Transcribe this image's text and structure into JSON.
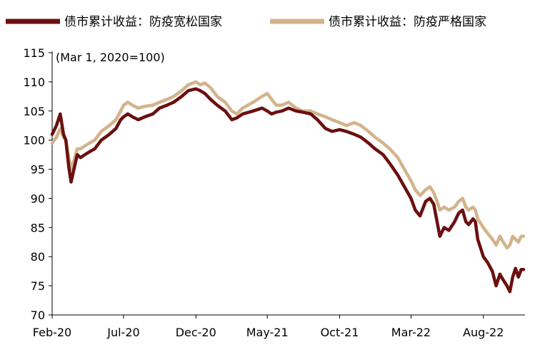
{
  "chart_data": {
    "type": "line",
    "note": "(Mar 1, 2020=100)",
    "ylim": [
      70,
      115
    ],
    "y_ticks": [
      70,
      75,
      80,
      85,
      90,
      95,
      100,
      105,
      110,
      115
    ],
    "x_ticks": [
      {
        "date": "2020-02-01",
        "label": "Feb-20"
      },
      {
        "date": "2020-07-01",
        "label": "Jul-20"
      },
      {
        "date": "2020-12-01",
        "label": "Dec-20"
      },
      {
        "date": "2021-05-01",
        "label": "May-21"
      },
      {
        "date": "2021-10-01",
        "label": "Oct-21"
      },
      {
        "date": "2022-03-01",
        "label": "Mar-22"
      },
      {
        "date": "2022-08-01",
        "label": "Aug-22"
      }
    ],
    "xlim": [
      "2020-02-01",
      "2022-10-25"
    ],
    "legend_position": "top",
    "series": [
      {
        "name": "债市累计收益：防疫宽松国家",
        "color": "#6B0F0F",
        "points": [
          [
            "2020-02-01",
            101.0
          ],
          [
            "2020-02-10",
            102.5
          ],
          [
            "2020-02-18",
            104.5
          ],
          [
            "2020-02-25",
            101.0
          ],
          [
            "2020-03-01",
            100.0
          ],
          [
            "2020-03-07",
            95.5
          ],
          [
            "2020-03-12",
            92.8
          ],
          [
            "2020-03-18",
            95.0
          ],
          [
            "2020-03-25",
            97.5
          ],
          [
            "2020-04-01",
            97.0
          ],
          [
            "2020-04-10",
            97.5
          ],
          [
            "2020-04-20",
            98.0
          ],
          [
            "2020-05-01",
            98.5
          ],
          [
            "2020-05-15",
            100.0
          ],
          [
            "2020-06-01",
            101.0
          ],
          [
            "2020-06-15",
            102.0
          ],
          [
            "2020-06-25",
            103.5
          ],
          [
            "2020-07-01",
            104.0
          ],
          [
            "2020-07-10",
            104.5
          ],
          [
            "2020-07-20",
            104.0
          ],
          [
            "2020-08-01",
            103.5
          ],
          [
            "2020-08-15",
            104.0
          ],
          [
            "2020-09-01",
            104.5
          ],
          [
            "2020-09-15",
            105.5
          ],
          [
            "2020-10-01",
            106.0
          ],
          [
            "2020-10-15",
            106.5
          ],
          [
            "2020-11-01",
            107.5
          ],
          [
            "2020-11-15",
            108.5
          ],
          [
            "2020-12-01",
            108.8
          ],
          [
            "2020-12-10",
            108.5
          ],
          [
            "2020-12-20",
            108.0
          ],
          [
            "2021-01-01",
            107.0
          ],
          [
            "2021-01-15",
            106.0
          ],
          [
            "2021-02-01",
            105.0
          ],
          [
            "2021-02-15",
            103.5
          ],
          [
            "2021-02-25",
            103.8
          ],
          [
            "2021-03-10",
            104.5
          ],
          [
            "2021-04-01",
            105.0
          ],
          [
            "2021-04-20",
            105.5
          ],
          [
            "2021-05-01",
            105.0
          ],
          [
            "2021-05-10",
            104.5
          ],
          [
            "2021-05-20",
            104.8
          ],
          [
            "2021-06-01",
            105.0
          ],
          [
            "2021-06-15",
            105.5
          ],
          [
            "2021-07-01",
            105.0
          ],
          [
            "2021-07-15",
            104.8
          ],
          [
            "2021-08-01",
            104.5
          ],
          [
            "2021-08-15",
            103.5
          ],
          [
            "2021-09-01",
            102.0
          ],
          [
            "2021-09-15",
            101.5
          ],
          [
            "2021-10-01",
            101.8
          ],
          [
            "2021-10-15",
            101.5
          ],
          [
            "2021-11-01",
            101.0
          ],
          [
            "2021-11-15",
            100.5
          ],
          [
            "2021-12-01",
            99.5
          ],
          [
            "2021-12-15",
            98.5
          ],
          [
            "2022-01-01",
            97.5
          ],
          [
            "2022-01-15",
            96.0
          ],
          [
            "2022-02-01",
            94.0
          ],
          [
            "2022-02-15",
            92.0
          ],
          [
            "2022-03-01",
            90.0
          ],
          [
            "2022-03-10",
            88.0
          ],
          [
            "2022-03-20",
            87.0
          ],
          [
            "2022-04-01",
            89.5
          ],
          [
            "2022-04-10",
            90.0
          ],
          [
            "2022-04-18",
            89.0
          ],
          [
            "2022-04-25",
            86.0
          ],
          [
            "2022-05-01",
            83.5
          ],
          [
            "2022-05-10",
            85.0
          ],
          [
            "2022-05-20",
            84.5
          ],
          [
            "2022-06-01",
            86.0
          ],
          [
            "2022-06-10",
            87.5
          ],
          [
            "2022-06-18",
            88.0
          ],
          [
            "2022-06-25",
            86.0
          ],
          [
            "2022-07-01",
            85.5
          ],
          [
            "2022-07-10",
            86.5
          ],
          [
            "2022-07-15",
            86.0
          ],
          [
            "2022-07-20",
            83.0
          ],
          [
            "2022-08-01",
            80.0
          ],
          [
            "2022-08-10",
            79.0
          ],
          [
            "2022-08-20",
            77.5
          ],
          [
            "2022-08-28",
            75.0
          ],
          [
            "2022-09-05",
            77.0
          ],
          [
            "2022-09-12",
            76.0
          ],
          [
            "2022-09-20",
            75.0
          ],
          [
            "2022-09-26",
            74.0
          ],
          [
            "2022-10-02",
            76.5
          ],
          [
            "2022-10-08",
            78.0
          ],
          [
            "2022-10-14",
            76.5
          ],
          [
            "2022-10-20",
            77.8
          ],
          [
            "2022-10-25",
            77.8
          ]
        ]
      },
      {
        "name": "债市累计收益：防疫严格国家",
        "color": "#D2B48C",
        "points": [
          [
            "2020-02-01",
            99.5
          ],
          [
            "2020-02-10",
            100.5
          ],
          [
            "2020-02-18",
            102.0
          ],
          [
            "2020-02-25",
            100.5
          ],
          [
            "2020-03-01",
            100.0
          ],
          [
            "2020-03-07",
            97.0
          ],
          [
            "2020-03-12",
            95.0
          ],
          [
            "2020-03-18",
            96.5
          ],
          [
            "2020-03-25",
            98.5
          ],
          [
            "2020-04-01",
            98.5
          ],
          [
            "2020-04-10",
            99.0
          ],
          [
            "2020-04-20",
            99.5
          ],
          [
            "2020-05-01",
            100.0
          ],
          [
            "2020-05-15",
            101.5
          ],
          [
            "2020-06-01",
            102.5
          ],
          [
            "2020-06-15",
            103.5
          ],
          [
            "2020-06-25",
            105.0
          ],
          [
            "2020-07-01",
            106.0
          ],
          [
            "2020-07-10",
            106.5
          ],
          [
            "2020-07-20",
            106.0
          ],
          [
            "2020-08-01",
            105.5
          ],
          [
            "2020-08-15",
            105.8
          ],
          [
            "2020-09-01",
            106.0
          ],
          [
            "2020-09-15",
            106.5
          ],
          [
            "2020-10-01",
            107.0
          ],
          [
            "2020-10-15",
            107.5
          ],
          [
            "2020-11-01",
            108.5
          ],
          [
            "2020-11-15",
            109.5
          ],
          [
            "2020-12-01",
            110.0
          ],
          [
            "2020-12-10",
            109.5
          ],
          [
            "2020-12-20",
            109.8
          ],
          [
            "2021-01-01",
            109.0
          ],
          [
            "2021-01-15",
            107.5
          ],
          [
            "2021-02-01",
            106.5
          ],
          [
            "2021-02-15",
            105.0
          ],
          [
            "2021-02-25",
            104.5
          ],
          [
            "2021-03-10",
            105.5
          ],
          [
            "2021-04-01",
            106.5
          ],
          [
            "2021-04-20",
            107.5
          ],
          [
            "2021-05-01",
            108.0
          ],
          [
            "2021-05-10",
            107.0
          ],
          [
            "2021-05-20",
            106.0
          ],
          [
            "2021-06-01",
            106.0
          ],
          [
            "2021-06-15",
            106.5
          ],
          [
            "2021-07-01",
            105.5
          ],
          [
            "2021-07-15",
            105.0
          ],
          [
            "2021-08-01",
            105.0
          ],
          [
            "2021-08-15",
            104.5
          ],
          [
            "2021-09-01",
            104.0
          ],
          [
            "2021-09-15",
            103.5
          ],
          [
            "2021-10-01",
            103.0
          ],
          [
            "2021-10-15",
            102.5
          ],
          [
            "2021-11-01",
            103.0
          ],
          [
            "2021-11-15",
            102.5
          ],
          [
            "2021-12-01",
            101.5
          ],
          [
            "2021-12-15",
            100.5
          ],
          [
            "2022-01-01",
            99.5
          ],
          [
            "2022-01-15",
            98.5
          ],
          [
            "2022-02-01",
            97.0
          ],
          [
            "2022-02-15",
            95.0
          ],
          [
            "2022-03-01",
            93.0
          ],
          [
            "2022-03-10",
            91.5
          ],
          [
            "2022-03-20",
            90.5
          ],
          [
            "2022-04-01",
            91.5
          ],
          [
            "2022-04-10",
            92.0
          ],
          [
            "2022-04-18",
            91.0
          ],
          [
            "2022-04-25",
            89.5
          ],
          [
            "2022-05-01",
            88.0
          ],
          [
            "2022-05-10",
            88.5
          ],
          [
            "2022-05-20",
            88.0
          ],
          [
            "2022-06-01",
            88.5
          ],
          [
            "2022-06-10",
            89.5
          ],
          [
            "2022-06-18",
            90.0
          ],
          [
            "2022-06-25",
            88.5
          ],
          [
            "2022-07-01",
            88.0
          ],
          [
            "2022-07-10",
            88.5
          ],
          [
            "2022-07-15",
            88.0
          ],
          [
            "2022-07-20",
            86.5
          ],
          [
            "2022-08-01",
            85.0
          ],
          [
            "2022-08-10",
            84.0
          ],
          [
            "2022-08-20",
            83.0
          ],
          [
            "2022-08-28",
            82.0
          ],
          [
            "2022-09-05",
            83.5
          ],
          [
            "2022-09-12",
            82.5
          ],
          [
            "2022-09-20",
            81.5
          ],
          [
            "2022-09-26",
            82.0
          ],
          [
            "2022-10-02",
            83.5
          ],
          [
            "2022-10-08",
            83.0
          ],
          [
            "2022-10-14",
            82.5
          ],
          [
            "2022-10-20",
            83.5
          ],
          [
            "2022-10-25",
            83.5
          ]
        ]
      }
    ]
  }
}
